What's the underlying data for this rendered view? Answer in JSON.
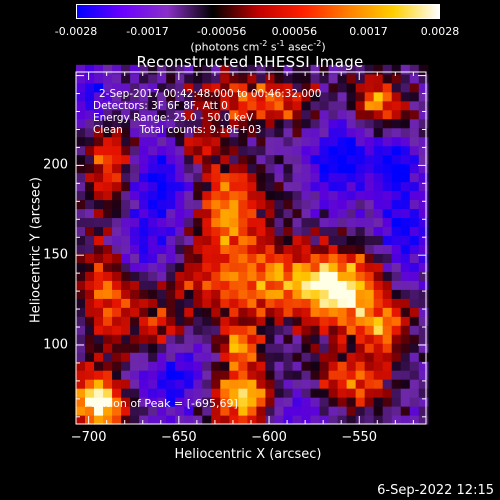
{
  "colorbar": {
    "ticks": [
      "-0.0028",
      "-0.0017",
      "-0.00056",
      "0.00056",
      "0.0017",
      "0.0028"
    ],
    "tick_values": [
      -0.0028,
      -0.0017,
      -0.00056,
      0.00056,
      0.0017,
      0.0028
    ],
    "unit_prefix": "(photons cm",
    "unit_exp1": "-2",
    "unit_mid1": " s",
    "unit_exp2": "-1",
    "unit_mid2": " asec",
    "unit_exp3": "-2",
    "unit_suffix": ")",
    "colors": [
      "#0000ff",
      "#6a00ff",
      "#8a30c8",
      "#000000",
      "#c00000",
      "#ff2000",
      "#ff8000",
      "#ffd000",
      "#ffffff"
    ]
  },
  "header": {
    "title": "Reconstructed RHESSI Image"
  },
  "info": {
    "line1": "2-Sep-2017 00:42:48.000 to 00:46:32.000",
    "line2": "Detectors: 3F 6F 8F, Att 0",
    "line3": "Energy Range: 25.0 - 50.0 keV",
    "line4": "Clean     Total counts: 9.18E+03",
    "peak": "Position of Peak = [-695,69]"
  },
  "footer": {
    "timestamp": "6-Sep-2022 12:15"
  },
  "chart_data": {
    "type": "heatmap",
    "title": "Reconstructed RHESSI Image",
    "xlabel": "Heliocentric X (arcsec)",
    "ylabel": "Heliocentric Y (arcsec)",
    "xlim": [
      -707,
      -513
    ],
    "ylim": [
      56,
      252
    ],
    "xticks": [
      -700,
      -650,
      -600,
      -550
    ],
    "yticks": [
      100,
      150,
      200
    ],
    "xtick_labels": [
      "−700",
      "−650",
      "−600",
      "−550"
    ],
    "ytick_labels": [
      "100",
      "150",
      "200"
    ],
    "colorbar_range": [
      -0.0028,
      0.0028
    ],
    "peak_position": [
      -695,
      69
    ],
    "sources": [
      {
        "x": -695,
        "y": 69,
        "amp": 1.0,
        "sx": 12,
        "sy": 12
      },
      {
        "x": -617,
        "y": 72,
        "amp": 0.95,
        "sx": 14,
        "sy": 12
      },
      {
        "x": -617,
        "y": 100,
        "amp": 0.7,
        "sx": 8,
        "sy": 8
      },
      {
        "x": -622,
        "y": 178,
        "amp": 0.75,
        "sx": 14,
        "sy": 18
      },
      {
        "x": -600,
        "y": 135,
        "amp": 0.65,
        "sx": 40,
        "sy": 15
      },
      {
        "x": -560,
        "y": 130,
        "amp": 0.6,
        "sx": 15,
        "sy": 16
      },
      {
        "x": -535,
        "y": 110,
        "amp": 0.55,
        "sx": 10,
        "sy": 12
      },
      {
        "x": -555,
        "y": 80,
        "amp": 0.55,
        "sx": 16,
        "sy": 12
      },
      {
        "x": -688,
        "y": 200,
        "amp": 0.6,
        "sx": 10,
        "sy": 18
      },
      {
        "x": -690,
        "y": 130,
        "amp": 0.55,
        "sx": 10,
        "sy": 22
      },
      {
        "x": -663,
        "y": 108,
        "amp": 0.5,
        "sx": 10,
        "sy": 10
      },
      {
        "x": -540,
        "y": 236,
        "amp": 0.75,
        "sx": 10,
        "sy": 10
      },
      {
        "x": -605,
        "y": 236,
        "amp": 0.6,
        "sx": 25,
        "sy": 10
      },
      {
        "x": -640,
        "y": 210,
        "amp": 0.45,
        "sx": 8,
        "sy": 8
      }
    ],
    "negatives": [
      {
        "x": -660,
        "y": 190,
        "amp": -0.6,
        "sx": 14,
        "sy": 16
      },
      {
        "x": -670,
        "y": 155,
        "amp": -0.5,
        "sx": 12,
        "sy": 12
      },
      {
        "x": -650,
        "y": 80,
        "amp": -0.55,
        "sx": 18,
        "sy": 14
      },
      {
        "x": -560,
        "y": 205,
        "amp": -0.65,
        "sx": 12,
        "sy": 18
      },
      {
        "x": -525,
        "y": 160,
        "amp": -0.55,
        "sx": 10,
        "sy": 20
      },
      {
        "x": -700,
        "y": 240,
        "amp": -0.5,
        "sx": 10,
        "sy": 10
      },
      {
        "x": -585,
        "y": 65,
        "amp": -0.4,
        "sx": 12,
        "sy": 10
      },
      {
        "x": -530,
        "y": 200,
        "amp": -0.6,
        "sx": 8,
        "sy": 10
      }
    ]
  }
}
